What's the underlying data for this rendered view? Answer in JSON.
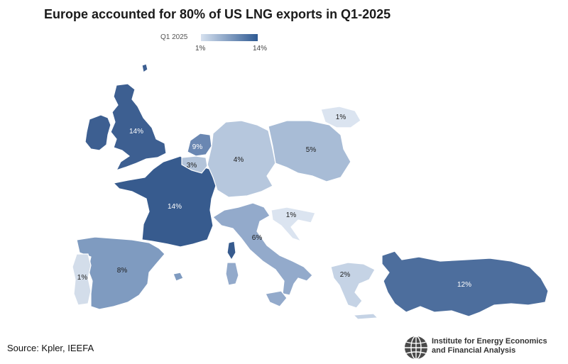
{
  "title": "Europe accounted for 80% of US LNG exports in Q1-2025",
  "legend": {
    "label": "Q1 2025",
    "min": "1%",
    "max": "14%",
    "color_min": "#d6e1ef",
    "color_max": "#2f5a93"
  },
  "regions": {
    "uk": {
      "value": "14%",
      "color": "#3d5f91"
    },
    "france": {
      "value": "14%",
      "color": "#375b8e"
    },
    "netherlands": {
      "value": "9%",
      "color": "#6a87b2"
    },
    "belgium": {
      "value": "3%",
      "color": "#b3c4da"
    },
    "germany": {
      "value": "4%",
      "color": "#b6c7dd"
    },
    "poland": {
      "value": "5%",
      "color": "#a8bcd6"
    },
    "lithuania": {
      "value": "1%",
      "color": "#dbe4f0"
    },
    "croatia": {
      "value": "1%",
      "color": "#dbe4f0"
    },
    "italy": {
      "value": "6%",
      "color": "#93aacb"
    },
    "spain": {
      "value": "8%",
      "color": "#7f9bc0"
    },
    "portugal": {
      "value": "1%",
      "color": "#d3ddea"
    },
    "greece": {
      "value": "2%",
      "color": "#c5d3e5"
    },
    "turkey": {
      "value": "12%",
      "color": "#4d6e9d"
    }
  },
  "source": "Source: Kpler, IEEFA",
  "logo": {
    "line1": "Institute for Energy Economics",
    "line2": "and Financial Analysis"
  }
}
